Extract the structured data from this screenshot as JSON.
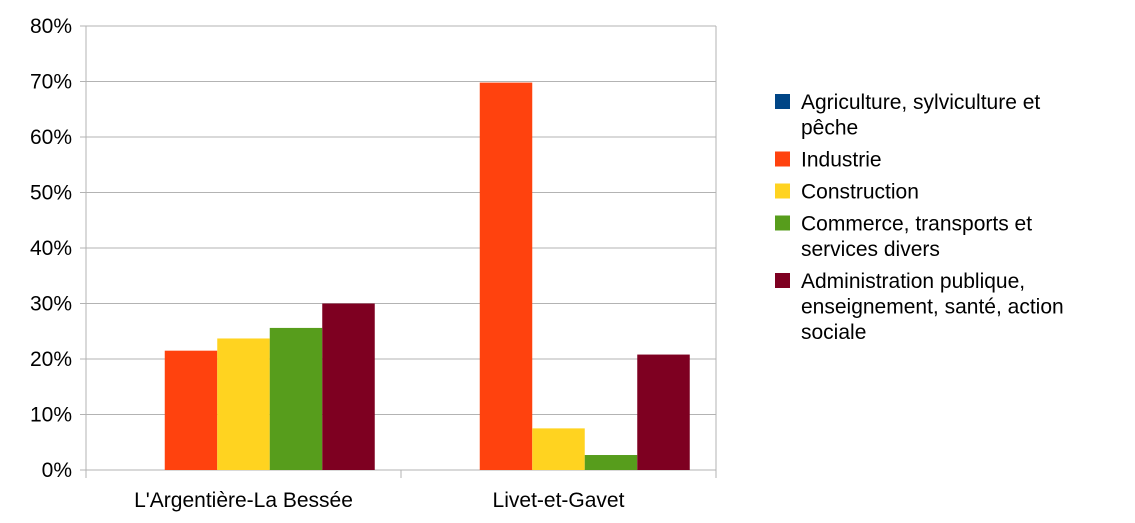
{
  "chart_data": {
    "type": "bar",
    "title": "",
    "xlabel": "",
    "ylabel": "",
    "ylim": [
      0,
      0.8
    ],
    "y_ticks": [
      "0%",
      "10%",
      "20%",
      "30%",
      "40%",
      "50%",
      "60%",
      "70%",
      "80%"
    ],
    "y_tick_values": [
      0,
      0.1,
      0.2,
      0.3,
      0.4,
      0.5,
      0.6,
      0.7,
      0.8
    ],
    "grid": "horizontal",
    "legend_position": "right",
    "categories": [
      "L'Argentière-La Bessée",
      "Livet-et-Gavet"
    ],
    "series": [
      {
        "name": "Agriculture, sylviculture et pêche",
        "legend_lines": [
          "Agriculture, sylviculture et",
          "pêche"
        ],
        "color": "#004586",
        "values": [
          0,
          0
        ]
      },
      {
        "name": "Industrie",
        "legend_lines": [
          "Industrie"
        ],
        "color": "#ff420e",
        "values": [
          0.215,
          0.698
        ]
      },
      {
        "name": "Construction",
        "legend_lines": [
          "Construction"
        ],
        "color": "#ffd320",
        "values": [
          0.237,
          0.075
        ]
      },
      {
        "name": "Commerce, transports et services divers",
        "legend_lines": [
          "Commerce, transports et",
          "services divers"
        ],
        "color": "#579d1c",
        "values": [
          0.256,
          0.027
        ]
      },
      {
        "name": "Administration publique, enseignement, santé, action sociale",
        "legend_lines": [
          "Administration publique,",
          "enseignement, santé, action",
          "sociale"
        ],
        "color": "#7e0021",
        "values": [
          0.3,
          0.208
        ]
      }
    ]
  }
}
